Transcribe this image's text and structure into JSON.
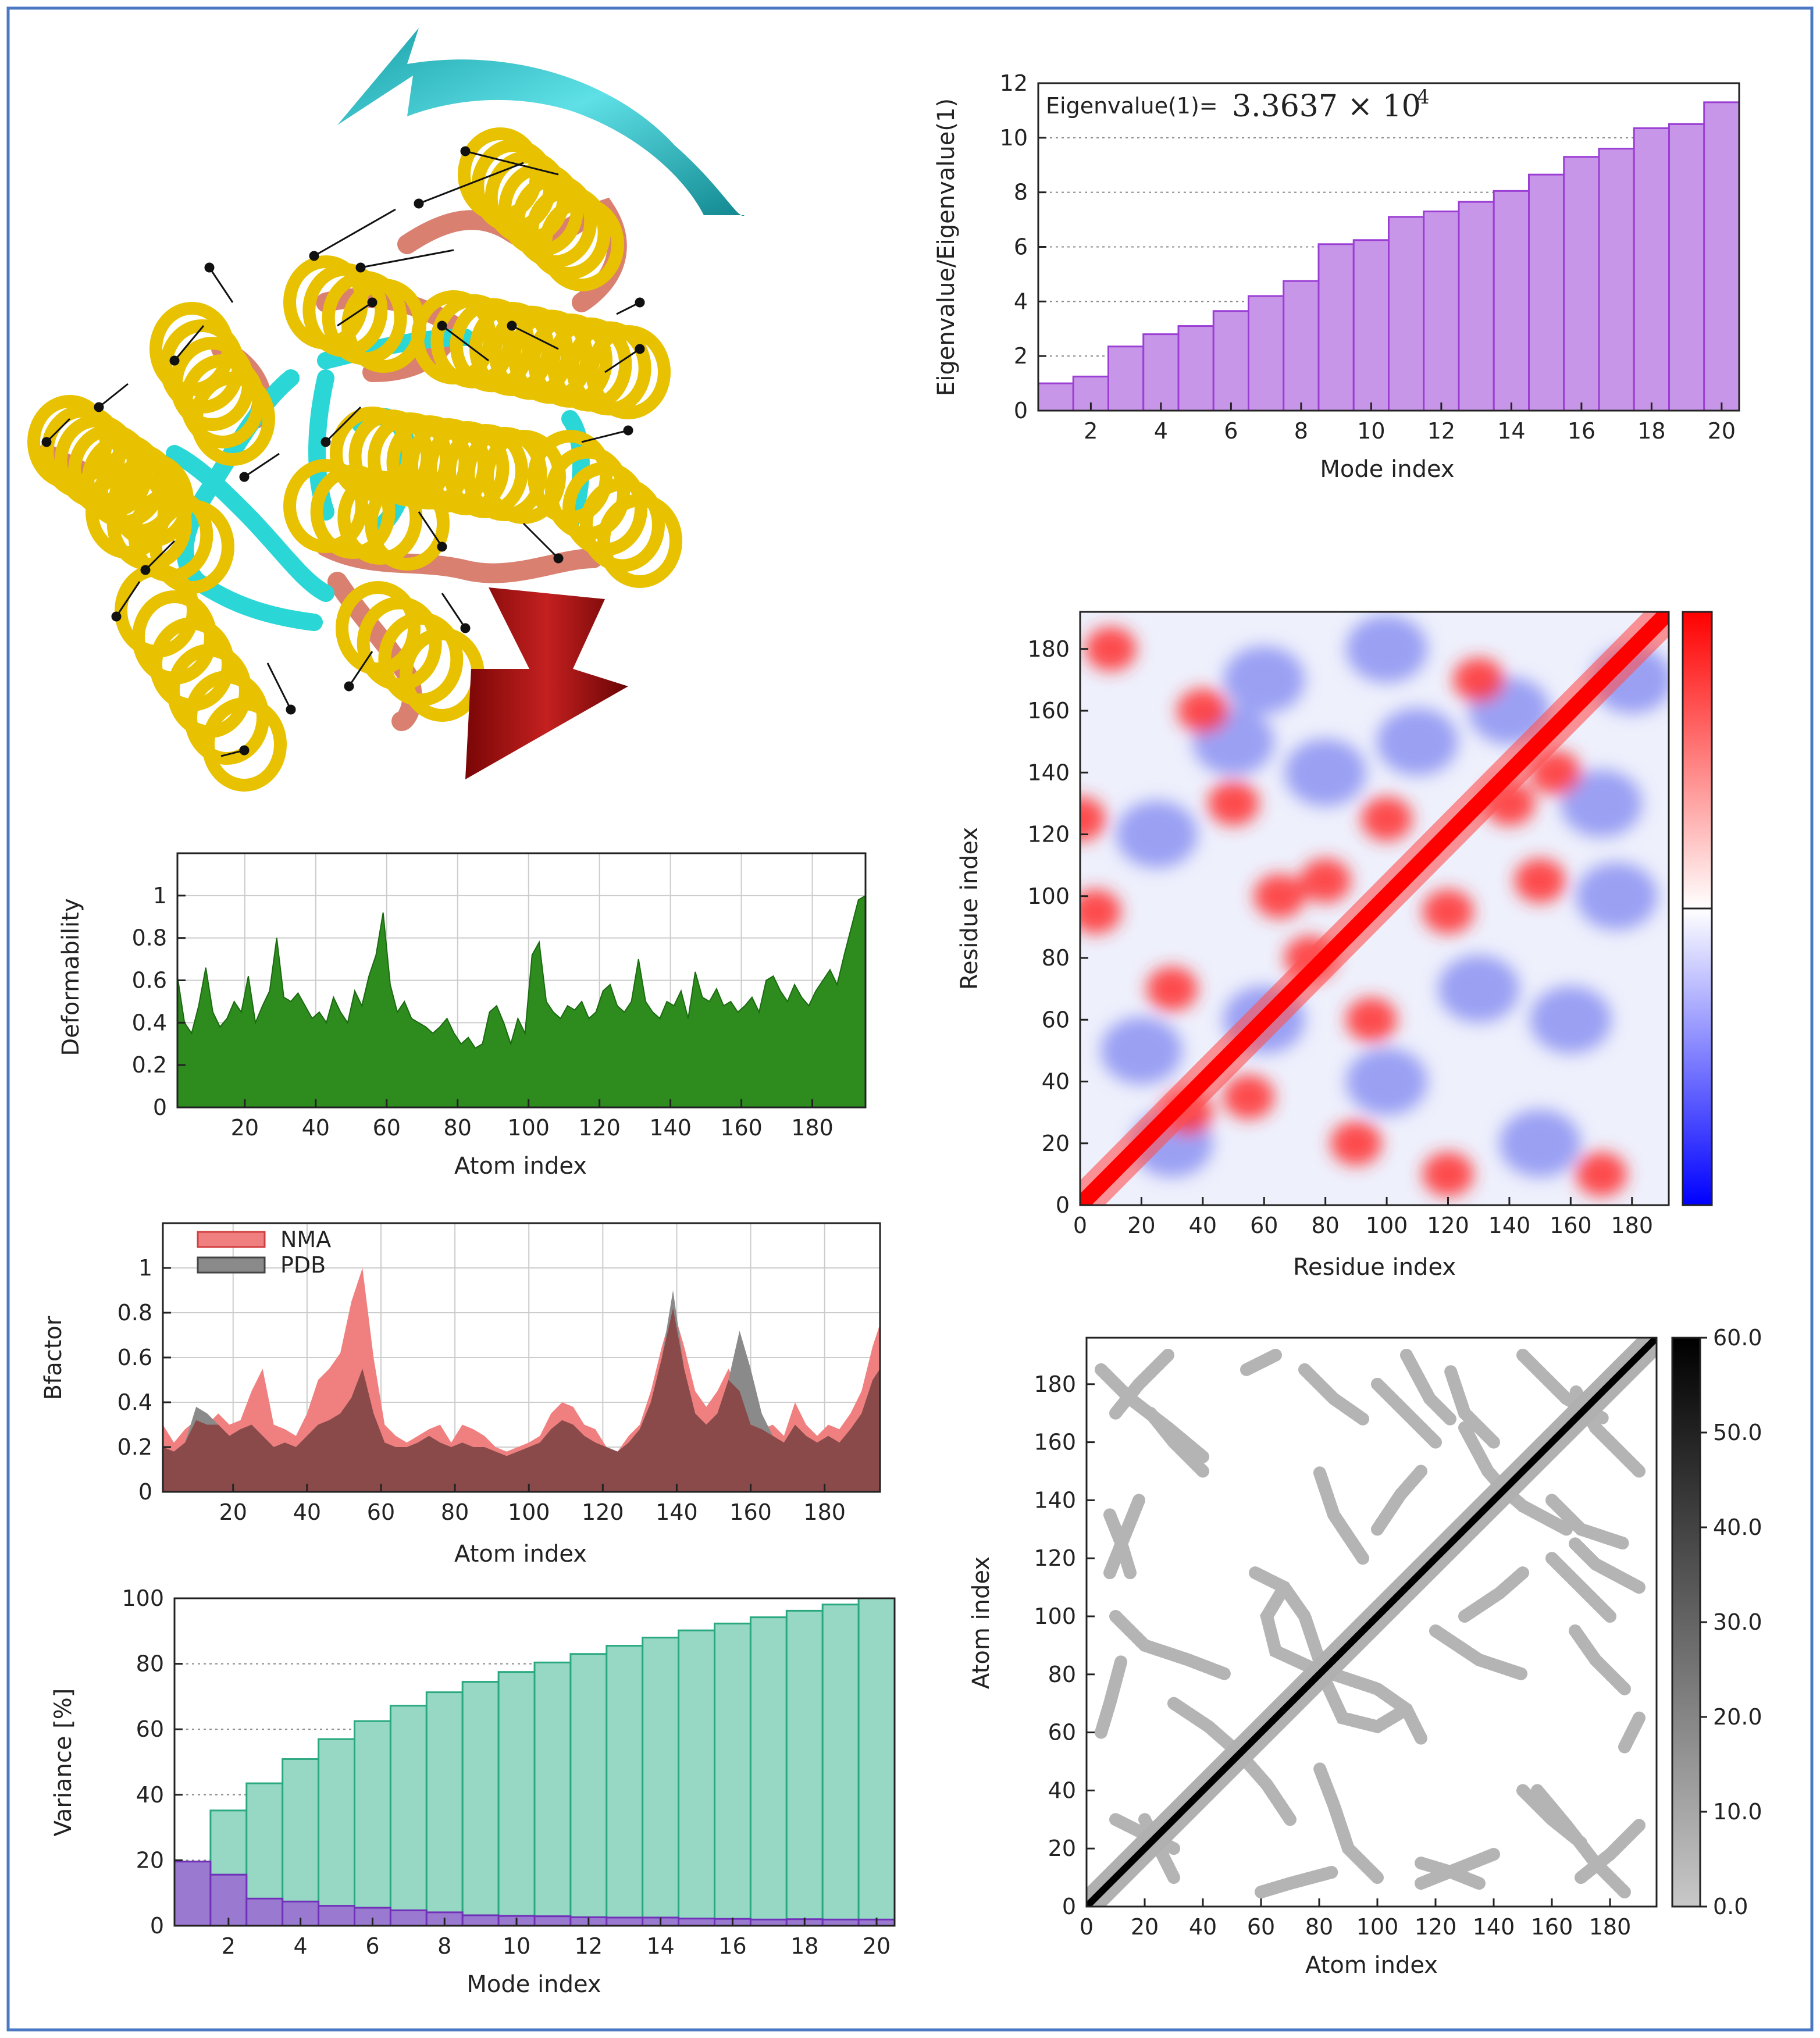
{
  "colors": {
    "border": "#4a78c2",
    "eigen_bar": "#c896e8",
    "eigen_bar_edge": "#9a3ed4",
    "deform_fill": "#2e8b1e",
    "nma_fill": "#f08080",
    "pdb_fill": "#8a8a8a",
    "overlap": "#8b4a4a",
    "cum_var": "#96d8c4",
    "ind_var": "#9a7ad0",
    "helix": "#e8c200",
    "sheet": "#2ad6d6",
    "coil": "#d98070",
    "arrow_top": "#22b8c0",
    "arrow_bottom": "#a81010"
  },
  "molecule": {
    "icons": [
      "rotation-arrow-icon",
      "translation-arrow-icon"
    ]
  },
  "chart_data": [
    {
      "id": "eigenvalues",
      "type": "bar",
      "title_prefix": "Eigenvalue(1)=",
      "title_value": "3.3637 × 10",
      "title_exp": "4",
      "xlabel": "Mode index",
      "ylabel": "Eigenvalue/Eigenvalue(1)",
      "categories": [
        1,
        2,
        3,
        4,
        5,
        6,
        7,
        8,
        9,
        10,
        11,
        12,
        13,
        14,
        15,
        16,
        17,
        18,
        19,
        20
      ],
      "values": [
        1.0,
        1.25,
        2.35,
        2.8,
        3.1,
        3.65,
        4.2,
        4.75,
        6.1,
        6.25,
        7.1,
        7.3,
        7.65,
        8.05,
        8.65,
        9.3,
        9.6,
        10.35,
        10.5,
        11.3
      ],
      "ylim": [
        0,
        12
      ],
      "xticks": [
        2,
        4,
        6,
        8,
        10,
        12,
        14,
        16,
        18,
        20
      ],
      "xtick_labels": [
        "2",
        "4",
        "6",
        "8",
        "10",
        "12",
        "14",
        "16",
        "18",
        "20"
      ],
      "yticks": [
        0,
        2,
        4,
        6,
        8,
        10,
        12
      ],
      "ytick_labels": [
        "0",
        "2",
        "4",
        "6",
        "8",
        "10",
        "12"
      ]
    },
    {
      "id": "deformability",
      "type": "area",
      "xlabel": "Atom index",
      "ylabel": "Deformability",
      "xlim": [
        1,
        195
      ],
      "ylim": [
        0,
        1.2
      ],
      "grid": true,
      "xticks": [
        20,
        40,
        60,
        80,
        100,
        120,
        140,
        160,
        180
      ],
      "xtick_labels": [
        "20",
        "40",
        "60",
        "80",
        "100",
        "120",
        "140",
        "160",
        "180"
      ],
      "yticks": [
        0,
        0.2,
        0.4,
        0.6,
        0.8,
        1
      ],
      "ytick_labels": [
        "0",
        "0.2",
        "0.4",
        "0.6",
        "0.8",
        "1"
      ],
      "x": [
        1,
        3,
        5,
        7,
        9,
        11,
        13,
        15,
        17,
        19,
        21,
        23,
        25,
        27,
        29,
        31,
        33,
        35,
        37,
        39,
        41,
        43,
        45,
        47,
        49,
        51,
        53,
        55,
        57,
        59,
        61,
        63,
        65,
        67,
        69,
        71,
        73,
        75,
        77,
        79,
        81,
        83,
        85,
        87,
        89,
        91,
        93,
        95,
        97,
        99,
        101,
        103,
        105,
        107,
        109,
        111,
        113,
        115,
        117,
        119,
        121,
        123,
        125,
        127,
        129,
        131,
        133,
        135,
        137,
        139,
        141,
        143,
        145,
        147,
        149,
        151,
        153,
        155,
        157,
        159,
        161,
        163,
        165,
        167,
        169,
        171,
        173,
        175,
        177,
        179,
        181,
        183,
        185,
        187,
        189,
        191,
        193,
        195
      ],
      "values": [
        0.62,
        0.4,
        0.35,
        0.48,
        0.66,
        0.45,
        0.38,
        0.42,
        0.5,
        0.45,
        0.62,
        0.4,
        0.48,
        0.55,
        0.8,
        0.52,
        0.5,
        0.54,
        0.48,
        0.42,
        0.45,
        0.4,
        0.52,
        0.45,
        0.4,
        0.55,
        0.48,
        0.62,
        0.72,
        0.92,
        0.58,
        0.45,
        0.5,
        0.42,
        0.4,
        0.38,
        0.35,
        0.38,
        0.42,
        0.35,
        0.3,
        0.33,
        0.28,
        0.3,
        0.45,
        0.48,
        0.4,
        0.3,
        0.42,
        0.35,
        0.72,
        0.78,
        0.5,
        0.45,
        0.42,
        0.48,
        0.46,
        0.5,
        0.42,
        0.45,
        0.55,
        0.58,
        0.48,
        0.45,
        0.5,
        0.7,
        0.5,
        0.45,
        0.42,
        0.5,
        0.48,
        0.55,
        0.42,
        0.64,
        0.52,
        0.5,
        0.56,
        0.48,
        0.5,
        0.45,
        0.48,
        0.52,
        0.45,
        0.6,
        0.62,
        0.55,
        0.5,
        0.58,
        0.52,
        0.48,
        0.55,
        0.6,
        0.65,
        0.58,
        0.72,
        0.85,
        0.98,
        1.0
      ]
    },
    {
      "id": "bfactor",
      "type": "area",
      "xlabel": "Atom index",
      "ylabel": "Bfactor",
      "legend": [
        "NMA",
        "PDB"
      ],
      "legend_position": "top-left",
      "xlim": [
        1,
        195
      ],
      "ylim": [
        0,
        1.2
      ],
      "grid": true,
      "xticks": [
        20,
        40,
        60,
        80,
        100,
        120,
        140,
        160,
        180
      ],
      "xtick_labels": [
        "20",
        "40",
        "60",
        "80",
        "100",
        "120",
        "140",
        "160",
        "180"
      ],
      "yticks": [
        0,
        0.2,
        0.4,
        0.6,
        0.8,
        1
      ],
      "ytick_labels": [
        "0",
        "0.2",
        "0.4",
        "0.6",
        "0.8",
        "1"
      ],
      "x": [
        1,
        4,
        7,
        10,
        13,
        16,
        19,
        22,
        25,
        28,
        31,
        34,
        37,
        40,
        43,
        46,
        49,
        52,
        55,
        58,
        61,
        64,
        67,
        70,
        73,
        76,
        79,
        82,
        85,
        88,
        91,
        94,
        97,
        100,
        103,
        106,
        109,
        112,
        115,
        118,
        121,
        124,
        127,
        130,
        133,
        136,
        139,
        142,
        145,
        148,
        151,
        154,
        157,
        160,
        163,
        166,
        169,
        172,
        175,
        178,
        181,
        184,
        187,
        190,
        193,
        195
      ],
      "series": [
        {
          "name": "NMA",
          "values": [
            0.3,
            0.22,
            0.28,
            0.32,
            0.3,
            0.35,
            0.3,
            0.32,
            0.45,
            0.55,
            0.3,
            0.28,
            0.25,
            0.35,
            0.5,
            0.55,
            0.62,
            0.85,
            1.0,
            0.6,
            0.3,
            0.25,
            0.22,
            0.25,
            0.28,
            0.3,
            0.22,
            0.3,
            0.28,
            0.25,
            0.2,
            0.18,
            0.2,
            0.22,
            0.25,
            0.35,
            0.4,
            0.38,
            0.3,
            0.28,
            0.2,
            0.18,
            0.25,
            0.3,
            0.45,
            0.65,
            0.82,
            0.65,
            0.45,
            0.38,
            0.45,
            0.55,
            0.45,
            0.3,
            0.28,
            0.3,
            0.25,
            0.4,
            0.3,
            0.25,
            0.3,
            0.28,
            0.35,
            0.45,
            0.65,
            0.75
          ]
        },
        {
          "name": "PDB",
          "values": [
            0.2,
            0.18,
            0.22,
            0.38,
            0.35,
            0.3,
            0.25,
            0.28,
            0.3,
            0.25,
            0.2,
            0.22,
            0.2,
            0.25,
            0.3,
            0.32,
            0.35,
            0.42,
            0.55,
            0.35,
            0.22,
            0.2,
            0.2,
            0.22,
            0.25,
            0.22,
            0.2,
            0.22,
            0.2,
            0.2,
            0.18,
            0.16,
            0.18,
            0.2,
            0.22,
            0.28,
            0.32,
            0.3,
            0.25,
            0.22,
            0.2,
            0.18,
            0.22,
            0.28,
            0.4,
            0.6,
            0.9,
            0.55,
            0.35,
            0.3,
            0.35,
            0.5,
            0.72,
            0.55,
            0.35,
            0.25,
            0.22,
            0.3,
            0.25,
            0.22,
            0.25,
            0.22,
            0.28,
            0.35,
            0.5,
            0.55
          ]
        }
      ]
    },
    {
      "id": "variance",
      "type": "bar",
      "xlabel": "Mode index",
      "ylabel": "Variance [%]",
      "categories": [
        1,
        2,
        3,
        4,
        5,
        6,
        7,
        8,
        9,
        10,
        11,
        12,
        13,
        14,
        15,
        16,
        17,
        18,
        19,
        20
      ],
      "series": [
        {
          "name": "cumulative",
          "values": [
            19.6,
            35.2,
            43.5,
            50.9,
            57.0,
            62.5,
            67.2,
            71.3,
            74.5,
            77.5,
            80.4,
            83.0,
            85.5,
            88.0,
            90.2,
            92.3,
            94.2,
            96.2,
            98.1,
            100
          ]
        },
        {
          "name": "individual",
          "values": [
            19.6,
            15.6,
            8.3,
            7.4,
            6.1,
            5.5,
            4.7,
            4.1,
            3.2,
            3.0,
            2.9,
            2.6,
            2.5,
            2.5,
            2.2,
            2.1,
            1.9,
            2.0,
            1.9,
            1.9
          ]
        }
      ],
      "ylim": [
        0,
        100
      ],
      "xticks": [
        2,
        4,
        6,
        8,
        10,
        12,
        14,
        16,
        18,
        20
      ],
      "xtick_labels": [
        "2",
        "4",
        "6",
        "8",
        "10",
        "12",
        "14",
        "16",
        "18",
        "20"
      ],
      "yticks": [
        0,
        20,
        40,
        60,
        80,
        100
      ],
      "ytick_labels": [
        "0",
        "20",
        "40",
        "60",
        "80",
        "100"
      ]
    },
    {
      "id": "covariance",
      "type": "heatmap",
      "xlabel": "Residue index",
      "ylabel": "Residue index",
      "xlim": [
        0,
        192
      ],
      "ylim": [
        0,
        192
      ],
      "xticks": [
        0,
        20,
        40,
        60,
        80,
        100,
        120,
        140,
        160,
        180
      ],
      "xtick_labels": [
        "0",
        "20",
        "40",
        "60",
        "80",
        "100",
        "120",
        "140",
        "160",
        "180"
      ],
      "yticks": [
        0,
        20,
        40,
        60,
        80,
        100,
        120,
        140,
        160,
        180
      ],
      "ytick_labels": [
        "0",
        "20",
        "40",
        "60",
        "80",
        "100",
        "120",
        "140",
        "160",
        "180"
      ],
      "colormap": [
        "#0000ff",
        "#ffffff",
        "#ff0000"
      ],
      "red_blobs": [
        [
          10,
          180
        ],
        [
          5,
          95
        ],
        [
          0,
          125
        ],
        [
          30,
          70
        ],
        [
          55,
          35
        ],
        [
          65,
          100
        ],
        [
          35,
          30
        ],
        [
          80,
          105
        ],
        [
          95,
          60
        ],
        [
          120,
          95
        ],
        [
          100,
          125
        ],
        [
          130,
          170
        ],
        [
          155,
          140
        ],
        [
          170,
          10
        ],
        [
          140,
          130
        ],
        [
          90,
          20
        ],
        [
          50,
          130
        ],
        [
          40,
          160
        ],
        [
          75,
          80
        ],
        [
          120,
          10
        ],
        [
          150,
          105
        ]
      ],
      "blue_blobs": [
        [
          50,
          150
        ],
        [
          25,
          120
        ],
        [
          100,
          40
        ],
        [
          160,
          60
        ],
        [
          140,
          160
        ],
        [
          60,
          170
        ],
        [
          175,
          100
        ],
        [
          110,
          150
        ],
        [
          20,
          50
        ],
        [
          130,
          70
        ],
        [
          80,
          140
        ],
        [
          150,
          20
        ],
        [
          100,
          180
        ],
        [
          60,
          60
        ],
        [
          170,
          130
        ],
        [
          30,
          20
        ],
        [
          180,
          170
        ]
      ]
    },
    {
      "id": "contacts",
      "type": "heatmap",
      "xlabel": "Atom index",
      "ylabel": "Atom index",
      "xlim": [
        0,
        196
      ],
      "ylim": [
        0,
        196
      ],
      "xticks": [
        0,
        20,
        40,
        60,
        80,
        100,
        120,
        140,
        160,
        180
      ],
      "xtick_labels": [
        "0",
        "20",
        "40",
        "60",
        "80",
        "100",
        "120",
        "140",
        "160",
        "180"
      ],
      "yticks": [
        0,
        20,
        40,
        60,
        80,
        100,
        120,
        140,
        160,
        180
      ],
      "ytick_labels": [
        "0",
        "20",
        "40",
        "60",
        "80",
        "100",
        "120",
        "140",
        "160",
        "180"
      ],
      "colorbar_ticks": [
        0,
        10,
        20,
        30,
        40,
        50,
        60
      ],
      "colorbar_labels": [
        "0.0",
        "10.0",
        "20.0",
        "30.0",
        "40.0",
        "50.0",
        "60.0"
      ],
      "contact_paths": [
        [
          [
            5,
            185
          ],
          [
            15,
            175
          ],
          [
            28,
            165
          ],
          [
            40,
            155
          ]
        ],
        [
          [
            8,
            135
          ],
          [
            12,
            125
          ],
          [
            15,
            115
          ]
        ],
        [
          [
            10,
            100
          ],
          [
            20,
            90
          ],
          [
            35,
            85
          ],
          [
            48,
            80
          ]
        ],
        [
          [
            30,
            70
          ],
          [
            42,
            62
          ],
          [
            50,
            55
          ]
        ],
        [
          [
            58,
            115
          ],
          [
            68,
            110
          ],
          [
            75,
            100
          ],
          [
            80,
            85
          ]
        ],
        [
          [
            82,
            78
          ],
          [
            88,
            65
          ],
          [
            100,
            62
          ],
          [
            110,
            68
          ]
        ],
        [
          [
            120,
            95
          ],
          [
            135,
            85
          ],
          [
            150,
            80
          ]
        ],
        [
          [
            130,
            165
          ],
          [
            138,
            150
          ],
          [
            145,
            142
          ]
        ],
        [
          [
            150,
            190
          ],
          [
            165,
            175
          ],
          [
            178,
            168
          ]
        ],
        [
          [
            160,
            120
          ],
          [
            170,
            110
          ],
          [
            180,
            100
          ]
        ],
        [
          [
            75,
            185
          ],
          [
            85,
            175
          ],
          [
            95,
            168
          ]
        ],
        [
          [
            110,
            190
          ],
          [
            118,
            175
          ],
          [
            125,
            168
          ]
        ],
        [
          [
            10,
            30
          ],
          [
            20,
            25
          ],
          [
            30,
            20
          ]
        ],
        [
          [
            60,
            5
          ],
          [
            70,
            8
          ],
          [
            85,
            12
          ]
        ],
        [
          [
            115,
            8
          ],
          [
            125,
            12
          ],
          [
            140,
            18
          ]
        ],
        [
          [
            170,
            10
          ],
          [
            180,
            18
          ],
          [
            190,
            28
          ]
        ],
        [
          [
            185,
            55
          ],
          [
            190,
            65
          ]
        ],
        [
          [
            40,
            150
          ],
          [
            30,
            160
          ],
          [
            22,
            170
          ]
        ],
        [
          [
            100,
            130
          ],
          [
            108,
            142
          ],
          [
            115,
            150
          ]
        ],
        [
          [
            160,
            140
          ],
          [
            170,
            130
          ],
          [
            185,
            125
          ]
        ]
      ]
    }
  ]
}
